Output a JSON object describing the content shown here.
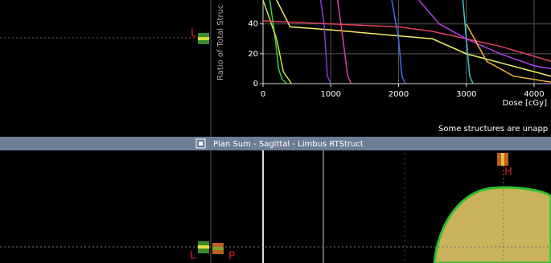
{
  "top_view": {
    "orientation_label": "L"
  },
  "status_message": "Some structures are unapp",
  "panel_title": "Plan Sum - Sagittal - Limbus RTStruct",
  "sagittal_view": {
    "head_label": "H",
    "left_label": "L",
    "posterior_label": "P"
  },
  "chart_data": {
    "type": "line",
    "y_label": "Ratio of Total Struc",
    "x_label": "Dose [cGy]",
    "xlim": [
      0,
      4250
    ],
    "ylim": [
      0,
      56
    ],
    "xticks": [
      0,
      1000,
      2000,
      3000,
      4000
    ],
    "yticks": [
      0,
      20,
      40
    ],
    "grid": true,
    "series": [
      {
        "color": "#40d040",
        "x": [
          100,
          180,
          230,
          280,
          350
        ],
        "values": [
          56,
          30,
          10,
          3,
          0
        ]
      },
      {
        "color": "#c8e840",
        "x": [
          0,
          200,
          300,
          420
        ],
        "values": [
          56,
          30,
          8,
          0
        ]
      },
      {
        "color": "#f0f060",
        "x": [
          200,
          400,
          1000,
          2000,
          2500,
          3000,
          4000,
          4250
        ],
        "values": [
          56,
          38,
          36,
          32,
          30,
          20,
          8,
          5
        ]
      },
      {
        "color": "#8040d0",
        "x": [
          850,
          900,
          950,
          1000
        ],
        "values": [
          56,
          40,
          5,
          0
        ]
      },
      {
        "color": "#e040a0",
        "x": [
          1100,
          1150,
          1250,
          1300
        ],
        "values": [
          56,
          40,
          5,
          0
        ]
      },
      {
        "color": "#e04060",
        "x": [
          0,
          1000,
          2000,
          2500,
          3500,
          4250
        ],
        "values": [
          42,
          40,
          38,
          35,
          25,
          15
        ]
      },
      {
        "color": "#4070f0",
        "x": [
          1900,
          2000,
          2050,
          2100
        ],
        "values": [
          56,
          30,
          5,
          0
        ]
      },
      {
        "color": "#40c8c8",
        "x": [
          2950,
          3000,
          3050,
          3100
        ],
        "values": [
          56,
          30,
          5,
          0
        ]
      },
      {
        "color": "#b040e8",
        "x": [
          2300,
          2600,
          3000,
          3500,
          4000,
          4250
        ],
        "values": [
          56,
          40,
          30,
          20,
          12,
          10
        ]
      },
      {
        "color": "#f0b040",
        "x": [
          3000,
          3300,
          3700,
          4250
        ],
        "values": [
          40,
          15,
          5,
          1
        ]
      }
    ]
  }
}
